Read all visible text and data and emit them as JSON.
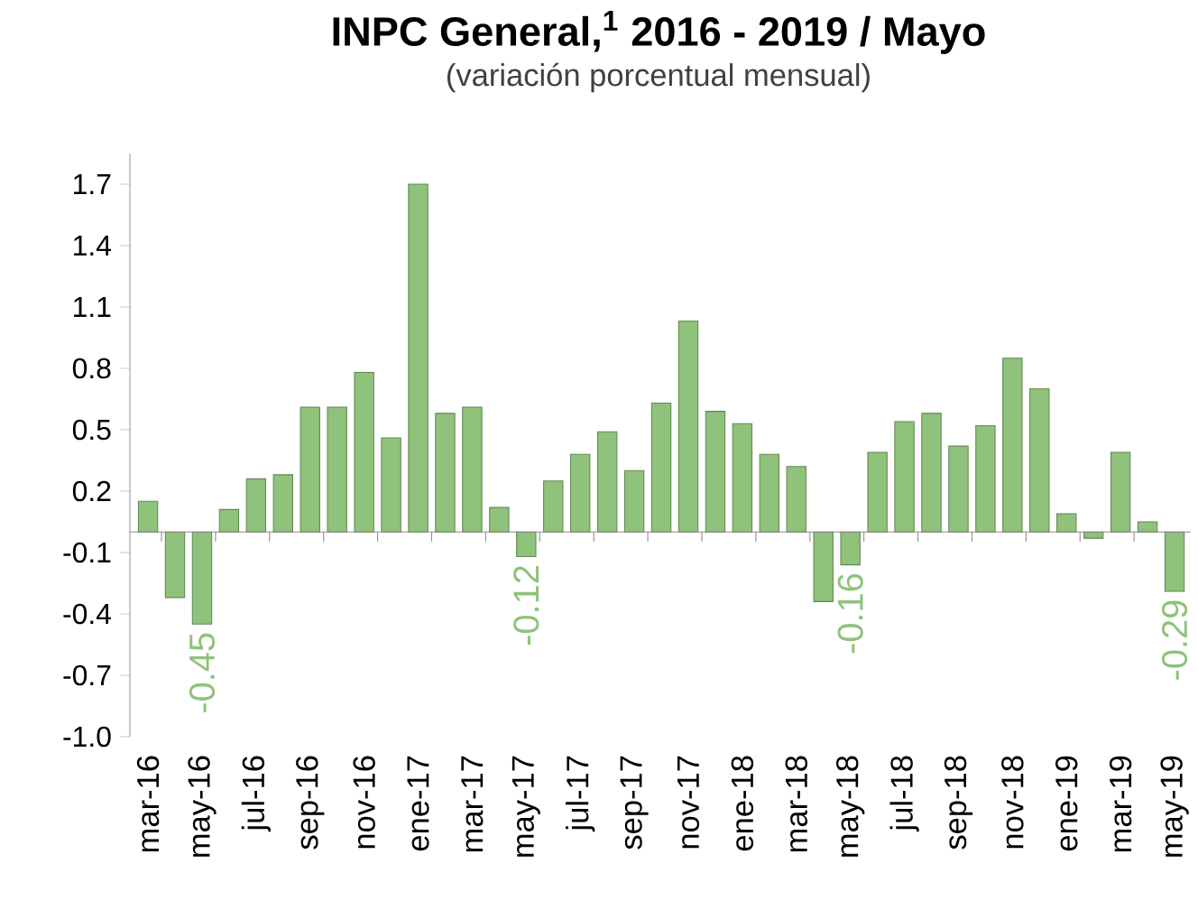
{
  "chart_data": {
    "type": "bar",
    "title": "INPC General,$^{1}$ 2016 - 2019 / Mayo",
    "subtitle": "(variación porcentual mensual)",
    "categories": [
      "mar-16",
      null,
      "may-16",
      null,
      "jul-16",
      null,
      "sep-16",
      null,
      "nov-16",
      null,
      "ene-17",
      null,
      "mar-17",
      null,
      "may-17",
      null,
      "jul-17",
      null,
      "sep-17",
      null,
      "nov-17",
      null,
      "ene-18",
      null,
      "mar-18",
      null,
      "may-18",
      null,
      "jul-18",
      null,
      "sep-18",
      null,
      "nov-18",
      null,
      "ene-19",
      null,
      "mar-19",
      null,
      "may-19"
    ],
    "values": [
      0.15,
      -0.32,
      -0.45,
      0.11,
      0.26,
      0.28,
      0.61,
      0.61,
      0.78,
      0.46,
      1.7,
      0.58,
      0.61,
      0.12,
      -0.12,
      0.25,
      0.38,
      0.49,
      0.3,
      0.63,
      1.03,
      0.59,
      0.53,
      0.38,
      0.32,
      -0.34,
      -0.16,
      0.39,
      0.54,
      0.58,
      0.42,
      0.52,
      0.85,
      0.7,
      0.09,
      -0.03,
      0.39,
      0.05,
      -0.29
    ],
    "value_labels": [
      null,
      null,
      "-0.45",
      null,
      null,
      null,
      null,
      null,
      null,
      null,
      null,
      null,
      null,
      null,
      "-0.12",
      null,
      null,
      null,
      null,
      null,
      null,
      null,
      null,
      null,
      null,
      null,
      "-0.16",
      null,
      null,
      null,
      null,
      null,
      null,
      null,
      null,
      null,
      null,
      null,
      "-0.29"
    ],
    "color": "#8fc27a",
    "ylim": [
      -1.0,
      1.85
    ],
    "yticks": [
      {
        "value": -1.0,
        "label": "-1.0"
      },
      -0.7,
      -0.4,
      -0.1,
      0.2,
      0.5,
      0.8,
      1.1,
      1.4,
      1.7
    ],
    "grid": false
  }
}
